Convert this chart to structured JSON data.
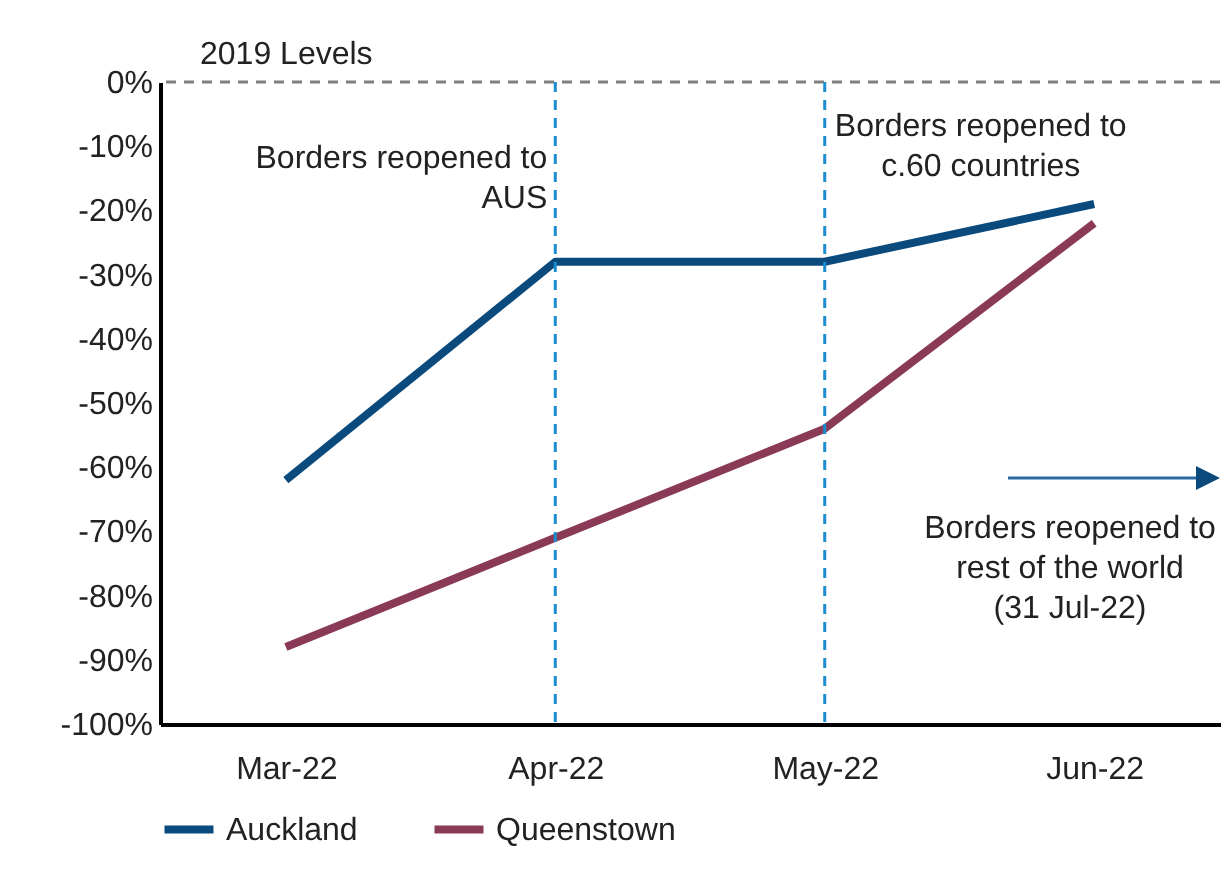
{
  "chart_data": {
    "type": "line",
    "categories": [
      "Mar-22",
      "Apr-22",
      "May-22",
      "Jun-22"
    ],
    "series": [
      {
        "name": "Auckland",
        "color": "#0b4a7d",
        "values": [
          -62,
          -28,
          -28,
          -19
        ]
      },
      {
        "name": "Queenstown",
        "color": "#8a3a57",
        "values": [
          -88,
          -71,
          -54,
          -22
        ]
      }
    ],
    "ylim": [
      -100,
      0
    ],
    "yticks": [
      {
        "value": 0,
        "label": "0%"
      },
      {
        "value": -10,
        "label": "-10%"
      },
      {
        "value": -20,
        "label": "-20%"
      },
      {
        "value": -30,
        "label": "-30%"
      },
      {
        "value": -40,
        "label": "-40%"
      },
      {
        "value": -50,
        "label": "-50%"
      },
      {
        "value": -60,
        "label": "-60%"
      },
      {
        "value": -70,
        "label": "-70%"
      },
      {
        "value": -80,
        "label": "-80%"
      },
      {
        "value": -90,
        "label": "-90%"
      },
      {
        "value": -100,
        "label": "-100%"
      }
    ],
    "ref_lines": [
      {
        "axis": "y",
        "value": 0,
        "label": "2019 Levels",
        "color": "#808080",
        "line_style": "dashed"
      },
      {
        "axis": "x",
        "value": "Apr-22",
        "label": "Borders reopened to AUS",
        "color": "#1a8ccf",
        "line_style": "dashed"
      },
      {
        "axis": "x",
        "value": "May-22",
        "label": "Borders reopened to c.60 countries",
        "color": "#1a8ccf",
        "line_style": "dashed"
      }
    ],
    "annotations": [
      "Borders reopened to rest of the world (31 Jul-22)"
    ],
    "grid": false,
    "legend": "bottom",
    "line_style": "solid",
    "marker": "none"
  }
}
